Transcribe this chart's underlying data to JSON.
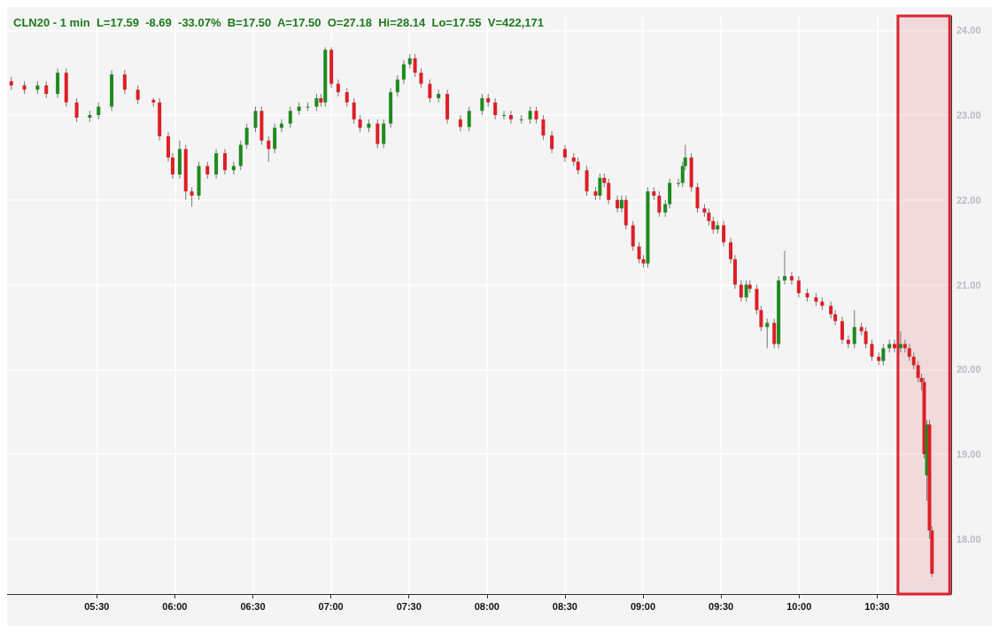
{
  "chart_data": {
    "type": "candlestick",
    "title": "CLN20 - 1 min  L=17.59  -8.69  -33.07%  B=17.50  A=17.50  O=27.18  Hi=28.14  Lo=17.55  V=422,171",
    "x": [
      4.952,
      5.036,
      5.12,
      5.176,
      5.249,
      5.304,
      5.371,
      5.455,
      5.511,
      5.595,
      5.679,
      5.763,
      5.863,
      5.902,
      5.958,
      5.986,
      6.031,
      6.07,
      6.109,
      6.154,
      6.209,
      6.265,
      6.321,
      6.377,
      6.422,
      6.461,
      6.517,
      6.556,
      6.601,
      6.64,
      6.684,
      6.74,
      6.796,
      6.852,
      6.908,
      6.936,
      6.964,
      7.003,
      7.047,
      7.103,
      7.148,
      7.187,
      7.243,
      7.299,
      7.338,
      7.383,
      7.427,
      7.467,
      7.506,
      7.539,
      7.578,
      7.634,
      7.69,
      7.746,
      7.83,
      7.886,
      7.969,
      8.008,
      8.053,
      8.109,
      8.154,
      8.221,
      8.277,
      8.316,
      8.361,
      8.416,
      8.5,
      8.556,
      8.584,
      8.64,
      8.696,
      8.724,
      8.752,
      8.78,
      8.836,
      8.863,
      8.891,
      8.936,
      8.975,
      9.003,
      9.031,
      9.07,
      9.104,
      9.143,
      9.171,
      9.227,
      9.254,
      9.271,
      9.31,
      9.349,
      9.394,
      9.422,
      9.45,
      9.478,
      9.517,
      9.562,
      9.59,
      9.629,
      9.662,
      9.685,
      9.729,
      9.757,
      9.796,
      9.841,
      9.869,
      9.908,
      9.953,
      9.998,
      10.053,
      10.109,
      10.148,
      10.204,
      10.232,
      10.277,
      10.316,
      10.355,
      10.4,
      10.428,
      10.467,
      10.511,
      10.54,
      10.579,
      10.612,
      10.651,
      10.679,
      10.707,
      10.735,
      10.763,
      10.785,
      10.802,
      10.819,
      10.836,
      10.852
    ],
    "ohlc": [
      [
        23.4,
        23.45,
        23.3,
        23.35
      ],
      [
        23.35,
        23.4,
        23.25,
        23.3
      ],
      [
        23.3,
        23.4,
        23.25,
        23.35
      ],
      [
        23.35,
        23.4,
        23.2,
        23.25
      ],
      [
        23.25,
        23.55,
        23.2,
        23.5
      ],
      [
        23.5,
        23.55,
        23.1,
        23.15
      ],
      [
        23.15,
        23.2,
        22.92,
        22.97
      ],
      [
        22.97,
        23.05,
        22.92,
        23.0
      ],
      [
        23.0,
        23.15,
        22.95,
        23.1
      ],
      [
        23.1,
        23.53,
        23.05,
        23.48
      ],
      [
        23.48,
        23.53,
        23.25,
        23.3
      ],
      [
        23.3,
        23.35,
        23.13,
        23.18
      ],
      [
        23.18,
        23.2,
        23.1,
        23.15
      ],
      [
        23.15,
        23.2,
        22.7,
        22.75
      ],
      [
        22.75,
        22.8,
        22.45,
        22.5
      ],
      [
        22.5,
        22.55,
        22.25,
        22.3
      ],
      [
        22.3,
        22.7,
        22.25,
        22.6
      ],
      [
        22.6,
        22.65,
        22.0,
        22.1
      ],
      [
        22.1,
        22.15,
        21.92,
        22.05
      ],
      [
        22.05,
        22.45,
        22.0,
        22.4
      ],
      [
        22.4,
        22.45,
        22.25,
        22.3
      ],
      [
        22.3,
        22.6,
        22.25,
        22.55
      ],
      [
        22.55,
        22.6,
        22.3,
        22.35
      ],
      [
        22.35,
        22.45,
        22.3,
        22.4
      ],
      [
        22.4,
        22.7,
        22.35,
        22.65
      ],
      [
        22.65,
        22.9,
        22.6,
        22.85
      ],
      [
        22.85,
        23.1,
        22.8,
        23.05
      ],
      [
        23.05,
        23.1,
        22.65,
        22.7
      ],
      [
        22.7,
        22.75,
        22.45,
        22.6
      ],
      [
        22.6,
        22.9,
        22.55,
        22.85
      ],
      [
        22.85,
        22.95,
        22.8,
        22.9
      ],
      [
        22.9,
        23.1,
        22.85,
        23.05
      ],
      [
        23.05,
        23.15,
        23.0,
        23.1
      ],
      [
        23.1,
        23.15,
        23.05,
        23.1
      ],
      [
        23.1,
        23.25,
        23.05,
        23.2
      ],
      [
        23.2,
        23.25,
        23.1,
        23.15
      ],
      [
        23.15,
        23.8,
        23.1,
        23.77
      ],
      [
        23.77,
        23.8,
        23.32,
        23.37
      ],
      [
        23.37,
        23.42,
        23.22,
        23.27
      ],
      [
        23.27,
        23.32,
        23.1,
        23.15
      ],
      [
        23.15,
        23.2,
        22.9,
        22.95
      ],
      [
        22.95,
        23.0,
        22.8,
        22.85
      ],
      [
        22.85,
        22.95,
        22.8,
        22.9
      ],
      [
        22.9,
        22.95,
        22.61,
        22.66
      ],
      [
        22.66,
        22.95,
        22.61,
        22.9
      ],
      [
        22.9,
        23.32,
        22.85,
        23.27
      ],
      [
        23.27,
        23.47,
        23.22,
        23.42
      ],
      [
        23.42,
        23.65,
        23.37,
        23.6
      ],
      [
        23.6,
        23.72,
        23.55,
        23.67
      ],
      [
        23.67,
        23.72,
        23.45,
        23.5
      ],
      [
        23.5,
        23.55,
        23.32,
        23.37
      ],
      [
        23.37,
        23.42,
        23.15,
        23.2
      ],
      [
        23.2,
        23.3,
        23.15,
        23.25
      ],
      [
        23.25,
        23.3,
        22.9,
        22.95
      ],
      [
        22.95,
        23.0,
        22.81,
        22.86
      ],
      [
        22.86,
        23.1,
        22.81,
        23.05
      ],
      [
        23.05,
        23.25,
        23.0,
        23.2
      ],
      [
        23.2,
        23.25,
        23.1,
        23.15
      ],
      [
        23.15,
        23.2,
        22.95,
        23.0
      ],
      [
        23.0,
        23.05,
        22.95,
        23.0
      ],
      [
        23.0,
        23.05,
        22.9,
        22.95
      ],
      [
        22.95,
        23.0,
        22.9,
        22.95
      ],
      [
        22.95,
        23.1,
        22.9,
        23.05
      ],
      [
        23.05,
        23.1,
        22.9,
        22.95
      ],
      [
        22.95,
        23.0,
        22.71,
        22.76
      ],
      [
        22.76,
        22.81,
        22.55,
        22.6
      ],
      [
        22.6,
        22.65,
        22.45,
        22.5
      ],
      [
        22.5,
        22.55,
        22.4,
        22.45
      ],
      [
        22.45,
        22.5,
        22.3,
        22.35
      ],
      [
        22.35,
        22.4,
        22.05,
        22.1
      ],
      [
        22.1,
        22.15,
        22.0,
        22.05
      ],
      [
        22.05,
        22.31,
        22.0,
        22.26
      ],
      [
        22.26,
        22.31,
        22.15,
        22.2
      ],
      [
        22.2,
        22.25,
        21.95,
        22.0
      ],
      [
        22.0,
        22.05,
        21.85,
        21.9
      ],
      [
        21.9,
        22.05,
        21.85,
        22.0
      ],
      [
        22.0,
        22.05,
        21.65,
        21.7
      ],
      [
        21.7,
        21.75,
        21.4,
        21.45
      ],
      [
        21.45,
        21.5,
        21.25,
        21.3
      ],
      [
        21.3,
        21.35,
        21.2,
        21.25
      ],
      [
        21.25,
        22.15,
        21.2,
        22.1
      ],
      [
        22.1,
        22.15,
        22.0,
        22.05
      ],
      [
        22.05,
        22.1,
        21.8,
        21.85
      ],
      [
        21.85,
        22.0,
        21.8,
        21.95
      ],
      [
        21.95,
        22.25,
        21.9,
        22.2
      ],
      [
        22.2,
        22.25,
        22.15,
        22.2
      ],
      [
        22.2,
        22.45,
        22.15,
        22.4
      ],
      [
        22.4,
        22.65,
        22.35,
        22.5
      ],
      [
        22.5,
        22.55,
        22.1,
        22.15
      ],
      [
        22.15,
        22.2,
        21.85,
        21.9
      ],
      [
        21.9,
        21.95,
        21.8,
        21.85
      ],
      [
        21.85,
        21.9,
        21.7,
        21.75
      ],
      [
        21.75,
        21.8,
        21.6,
        21.65
      ],
      [
        21.65,
        21.75,
        21.6,
        21.7
      ],
      [
        21.7,
        21.75,
        21.45,
        21.5
      ],
      [
        21.5,
        21.55,
        21.25,
        21.3
      ],
      [
        21.3,
        21.35,
        20.95,
        21.0
      ],
      [
        21.0,
        21.05,
        20.8,
        20.85
      ],
      [
        20.85,
        21.05,
        20.8,
        21.0
      ],
      [
        21.0,
        21.05,
        20.9,
        20.95
      ],
      [
        20.95,
        21.0,
        20.65,
        20.7
      ],
      [
        20.7,
        20.75,
        20.45,
        20.5
      ],
      [
        20.5,
        20.6,
        20.25,
        20.55
      ],
      [
        20.55,
        20.6,
        20.25,
        20.3
      ],
      [
        20.3,
        21.1,
        20.25,
        21.05
      ],
      [
        21.05,
        21.4,
        21.0,
        21.1
      ],
      [
        21.1,
        21.15,
        21.0,
        21.05
      ],
      [
        21.05,
        21.1,
        20.85,
        20.9
      ],
      [
        20.9,
        20.95,
        20.8,
        20.85
      ],
      [
        20.85,
        20.9,
        20.75,
        20.8
      ],
      [
        20.8,
        20.85,
        20.7,
        20.75
      ],
      [
        20.75,
        20.8,
        20.6,
        20.65
      ],
      [
        20.65,
        20.7,
        20.52,
        20.57
      ],
      [
        20.57,
        20.62,
        20.3,
        20.35
      ],
      [
        20.35,
        20.4,
        20.25,
        20.3
      ],
      [
        20.3,
        20.7,
        20.25,
        20.5
      ],
      [
        20.5,
        20.55,
        20.4,
        20.45
      ],
      [
        20.45,
        20.5,
        20.25,
        20.3
      ],
      [
        20.3,
        20.35,
        20.1,
        20.15
      ],
      [
        20.15,
        20.2,
        20.05,
        20.1
      ],
      [
        20.1,
        20.3,
        20.05,
        20.25
      ],
      [
        20.25,
        20.35,
        20.2,
        20.3
      ],
      [
        20.3,
        20.35,
        20.2,
        20.25
      ],
      [
        20.25,
        20.45,
        20.2,
        20.3
      ],
      [
        20.3,
        20.35,
        20.2,
        20.25
      ],
      [
        20.25,
        20.3,
        20.1,
        20.15
      ],
      [
        20.15,
        20.2,
        20.0,
        20.05
      ],
      [
        20.05,
        20.1,
        19.85,
        19.9
      ],
      [
        19.9,
        19.95,
        19.75,
        19.85
      ],
      [
        19.85,
        19.9,
        18.95,
        19.0
      ],
      [
        18.75,
        19.4,
        18.45,
        19.35
      ],
      [
        19.35,
        19.4,
        18.0,
        18.1
      ],
      [
        18.1,
        18.15,
        17.55,
        17.59
      ]
    ],
    "xlim": [
      4.925,
      10.975
    ],
    "xticks": [
      {
        "value": 5.5,
        "label": "05:30"
      },
      {
        "value": 6,
        "label": "06:00"
      },
      {
        "value": 6.5,
        "label": "06:30"
      },
      {
        "value": 7,
        "label": "07:00"
      },
      {
        "value": 7.5,
        "label": "07:30"
      },
      {
        "value": 8,
        "label": "08:00"
      },
      {
        "value": 8.5,
        "label": "08:30"
      },
      {
        "value": 9,
        "label": "09:00"
      },
      {
        "value": 9.5,
        "label": "09:30"
      },
      {
        "value": 10,
        "label": "10:00"
      },
      {
        "value": 10.5,
        "label": "10:30"
      }
    ],
    "ylim": [
      17.35,
      24.17
    ],
    "yticks": [
      {
        "value": 18,
        "label": "18.00"
      },
      {
        "value": 19,
        "label": "19.00"
      },
      {
        "value": 20,
        "label": "20.00"
      },
      {
        "value": 21,
        "label": "21.00"
      },
      {
        "value": 22,
        "label": "22.00"
      },
      {
        "value": 23,
        "label": "23.00"
      },
      {
        "value": 24,
        "label": "24.00"
      }
    ],
    "bands": [
      {
        "axis": "x",
        "from": 10.634,
        "to": 10.965,
        "color": "#d9232e"
      }
    ],
    "grid": true
  }
}
